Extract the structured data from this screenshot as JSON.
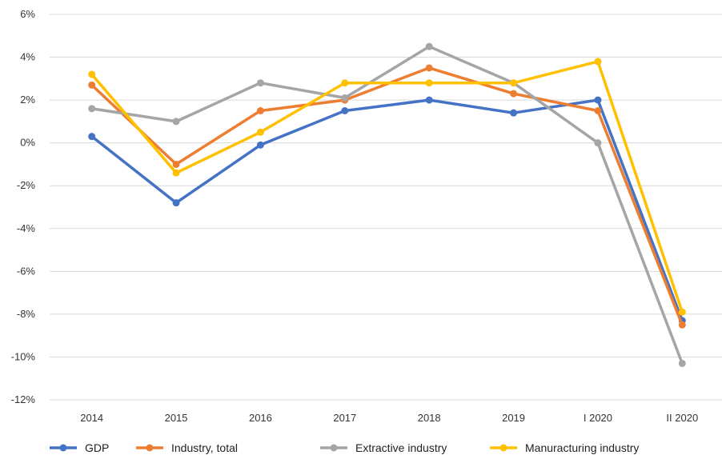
{
  "chart_data": {
    "type": "line",
    "categories": [
      "2014",
      "2015",
      "2016",
      "2017",
      "2018",
      "2019",
      "I 2020",
      "II 2020"
    ],
    "ylim": [
      -12,
      6
    ],
    "yticks": [
      6,
      4,
      2,
      0,
      -2,
      -4,
      -6,
      -8,
      -10,
      -12
    ],
    "ytick_labels": [
      "6%",
      "4%",
      "2%",
      "0%",
      "-2%",
      "-4%",
      "-6%",
      "-8%",
      "-10%",
      "-12%"
    ],
    "grid": true,
    "legend_position": "bottom",
    "series": [
      {
        "name": "GDP",
        "color": "#4472C4",
        "values": [
          0.3,
          -2.8,
          -0.1,
          1.5,
          2.0,
          1.4,
          2.0,
          -8.3
        ]
      },
      {
        "name": "Industry, total",
        "color": "#ED7D31",
        "values": [
          2.7,
          -1.0,
          1.5,
          2.0,
          3.5,
          2.3,
          1.5,
          -8.5
        ]
      },
      {
        "name": "Extractive industry",
        "color": "#A5A5A5",
        "values": [
          1.6,
          1.0,
          2.8,
          2.1,
          4.5,
          2.8,
          0.0,
          -10.3
        ]
      },
      {
        "name": "Manuracturing industry",
        "color": "#FFC000",
        "values": [
          3.2,
          -1.4,
          0.5,
          2.8,
          2.8,
          2.8,
          3.8,
          -7.9
        ]
      }
    ]
  }
}
